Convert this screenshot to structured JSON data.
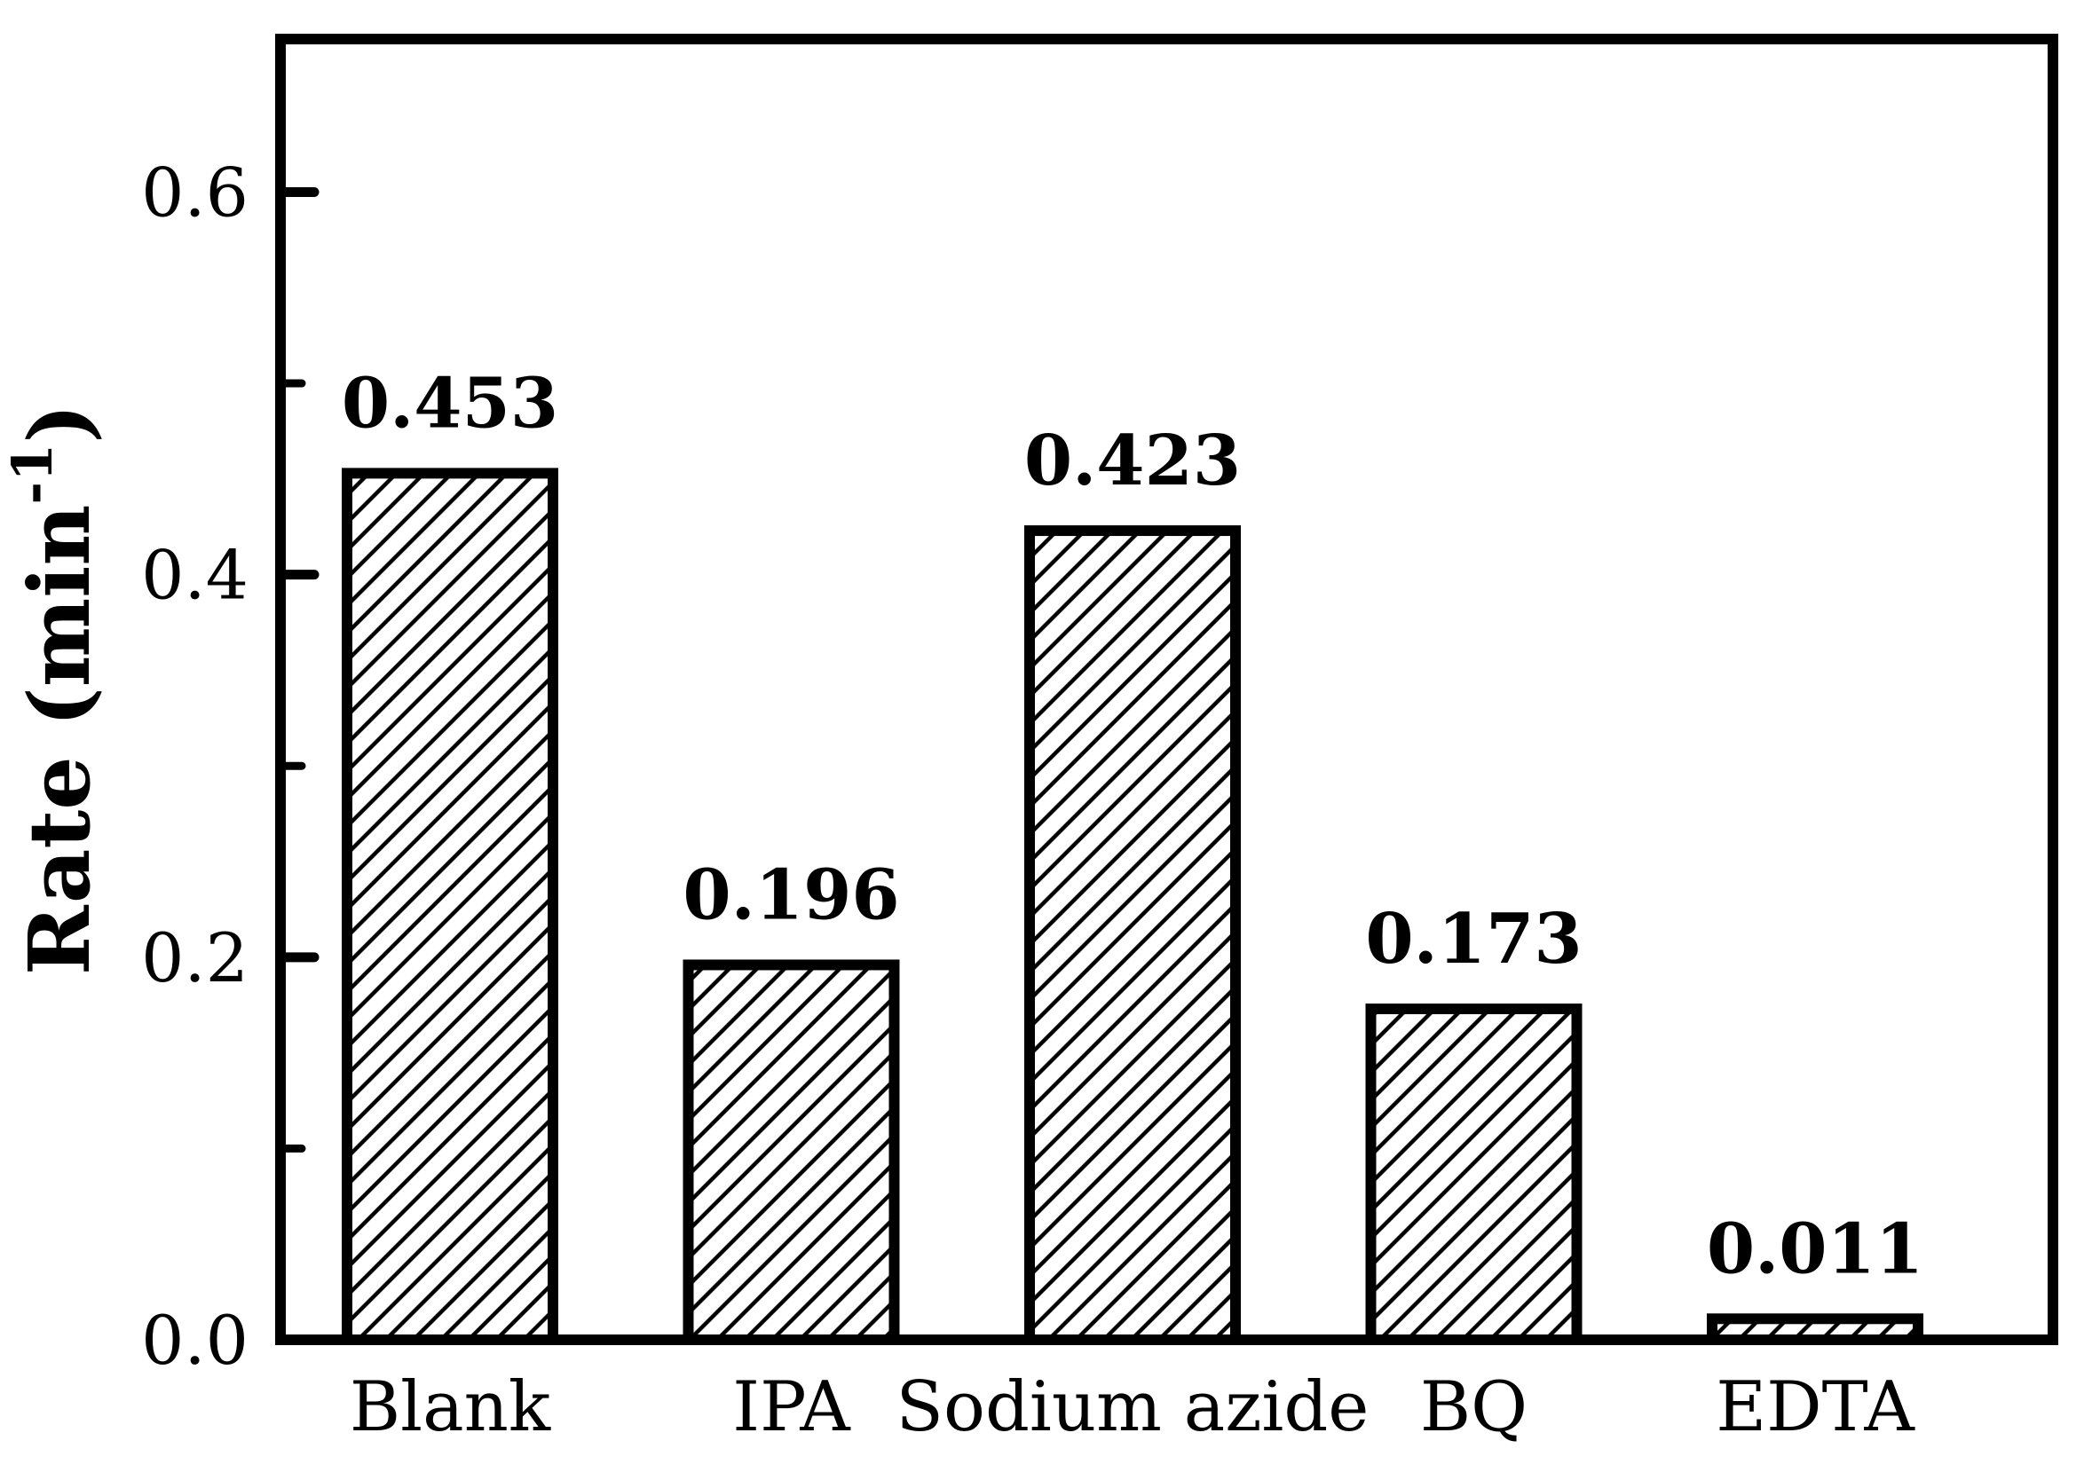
{
  "chart_data": {
    "type": "bar",
    "title": "",
    "categories": [
      "Blank",
      "IPA",
      "Sodium azide",
      "BQ",
      "EDTA"
    ],
    "values": [
      0.453,
      0.196,
      0.423,
      0.173,
      0.011
    ],
    "bar_value_labels": [
      "0.453",
      "0.196",
      "0.423",
      "0.173",
      "0.011"
    ],
    "xlabel": "",
    "ylabel": {
      "prefix": "Rate (min",
      "superscript": "-1",
      "suffix": ")"
    },
    "ylim": [
      0,
      0.68
    ],
    "yticks_major": [
      0.0,
      0.2,
      0.4,
      0.6
    ],
    "ytick_labels": [
      "0.0",
      "0.2",
      "0.4",
      "0.6"
    ],
    "yticks_minor": [
      0.1,
      0.3,
      0.5
    ],
    "grid": false,
    "legend": null,
    "bar_style": {
      "fill": "diagonal-hatch",
      "hatch_direction": "forward-slash",
      "edge_color": "#000000",
      "hatch_color": "#000000",
      "face_color": "#ffffff"
    },
    "colors": {
      "axis": "#000000",
      "text": "#000000",
      "background": "#ffffff"
    }
  }
}
